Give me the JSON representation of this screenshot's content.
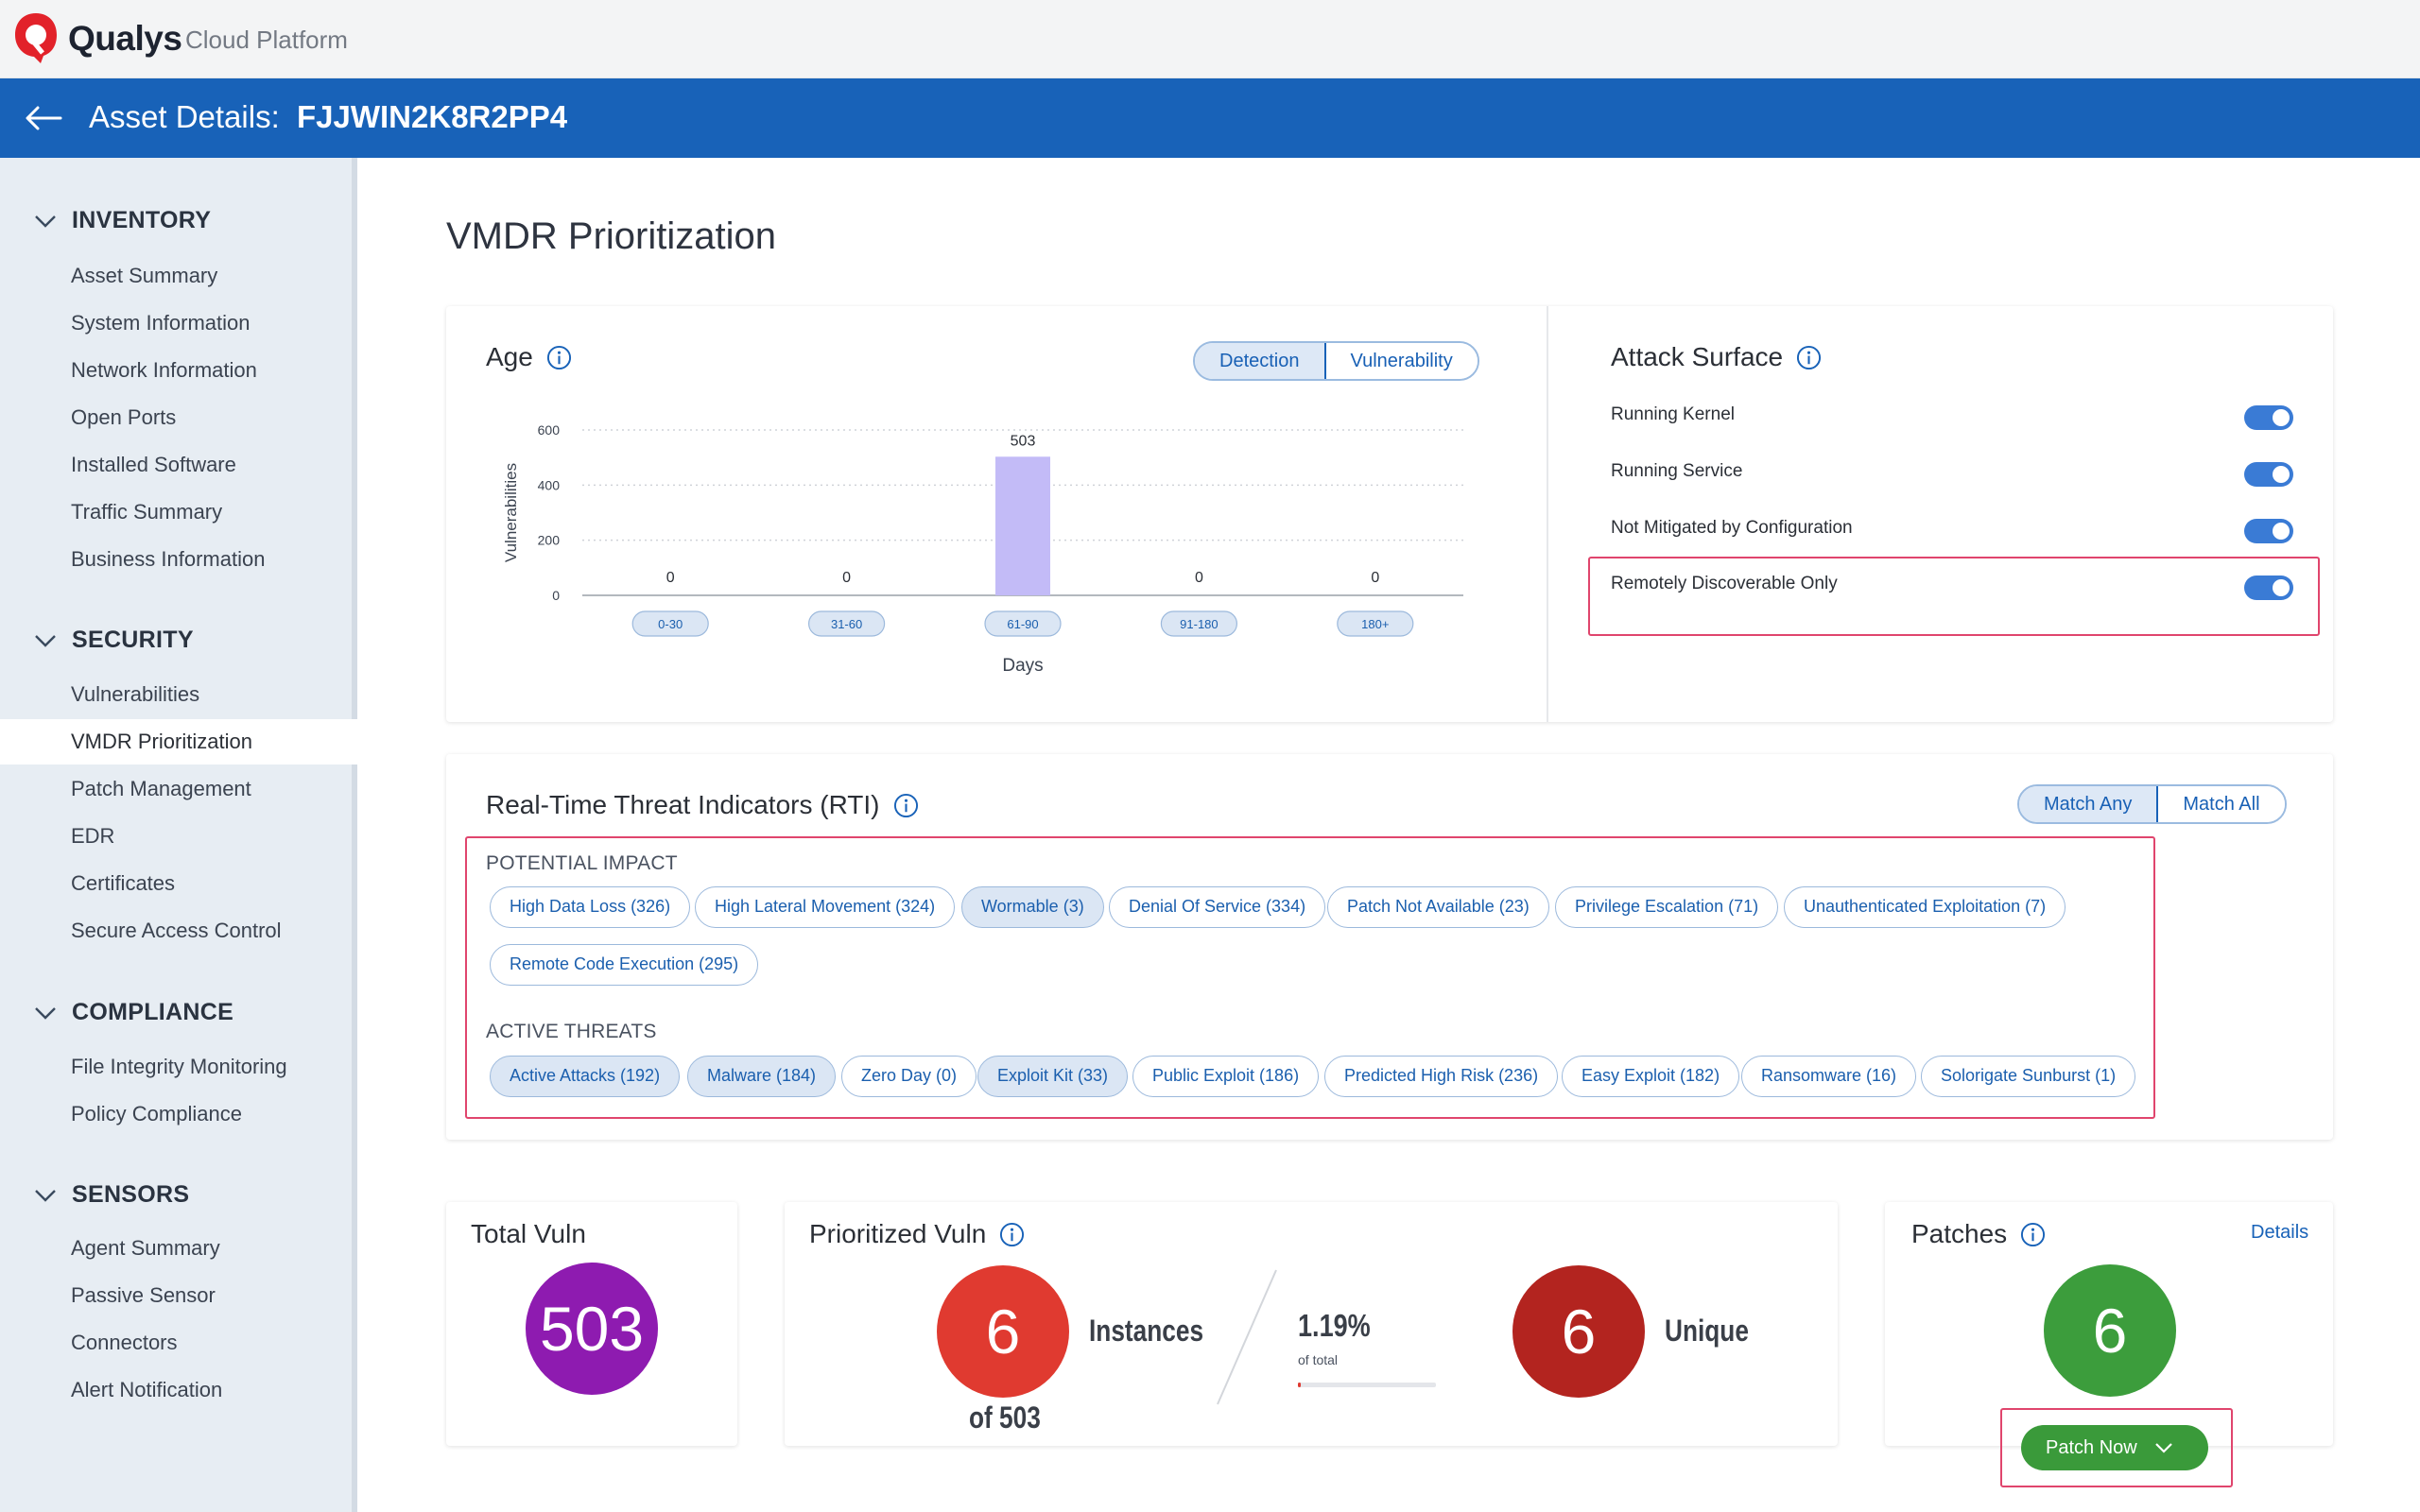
{
  "app": {
    "brand": "Qualys",
    "brand_suffix": "Cloud Platform",
    "header_label": "Asset Details:",
    "asset_name": "FJJWIN2K8R2PP4",
    "brand_color": "#1862b8"
  },
  "sidebar": {
    "sections": [
      {
        "title": "INVENTORY",
        "items": [
          "Asset Summary",
          "System Information",
          "Network Information",
          "Open Ports",
          "Installed Software",
          "Traffic Summary",
          "Business Information"
        ]
      },
      {
        "title": "SECURITY",
        "items": [
          "Vulnerabilities",
          "VMDR Prioritization",
          "Patch Management",
          "EDR",
          "Certificates",
          "Secure Access Control"
        ]
      },
      {
        "title": "COMPLIANCE",
        "items": [
          "File Integrity Monitoring",
          "Policy Compliance"
        ]
      },
      {
        "title": "SENSORS",
        "items": [
          "Agent Summary",
          "Passive Sensor",
          "Connectors",
          "Alert Notification"
        ]
      }
    ],
    "active_item": "VMDR Prioritization"
  },
  "page_title": "VMDR Prioritization",
  "age": {
    "title": "Age",
    "toggle": [
      "Detection",
      "Vulnerability"
    ],
    "selected": "Detection"
  },
  "chart_data": {
    "type": "bar",
    "categories": [
      "0-30",
      "31-60",
      "61-90",
      "91-180",
      "180+"
    ],
    "values": [
      0,
      0,
      503,
      0,
      0
    ],
    "data_labels": [
      "0",
      "0",
      "503",
      "0",
      "0"
    ],
    "xlabel": "Days",
    "ylabel": "Vulnerabilities",
    "ylim": [
      0,
      600
    ],
    "yticks": [
      "0",
      "200",
      "400",
      "600"
    ],
    "grid": true,
    "bar_color": "#c3bbf7"
  },
  "attack_surface": {
    "title": "Attack Surface",
    "toggles": [
      {
        "label": "Running Kernel",
        "on": true
      },
      {
        "label": "Running Service",
        "on": true
      },
      {
        "label": "Not Mitigated by Configuration",
        "on": true
      },
      {
        "label": "Remotely Discoverable Only",
        "on": true
      }
    ]
  },
  "rti": {
    "title": "Real-Time Threat Indicators (RTI)",
    "match": [
      "Match Any",
      "Match All"
    ],
    "selected_match": "Match Any",
    "potential_impact_label": "POTENTIAL IMPACT",
    "potential_impact": [
      {
        "label": "High Data Loss (326)",
        "on": false
      },
      {
        "label": "High Lateral Movement (324)",
        "on": false
      },
      {
        "label": "Wormable (3)",
        "on": true
      },
      {
        "label": "Denial Of Service (334)",
        "on": false
      },
      {
        "label": "Patch Not Available (23)",
        "on": false
      },
      {
        "label": "Privilege Escalation (71)",
        "on": false
      },
      {
        "label": "Unauthenticated Exploitation (7)",
        "on": false
      },
      {
        "label": "Remote Code Execution (295)",
        "on": false
      }
    ],
    "active_threats_label": "ACTIVE THREATS",
    "active_threats": [
      {
        "label": "Active Attacks (192)",
        "on": true
      },
      {
        "label": "Malware (184)",
        "on": true
      },
      {
        "label": "Zero Day (0)",
        "on": false
      },
      {
        "label": "Exploit Kit (33)",
        "on": true
      },
      {
        "label": "Public Exploit (186)",
        "on": false
      },
      {
        "label": "Predicted High Risk (236)",
        "on": false
      },
      {
        "label": "Easy Exploit (182)",
        "on": false
      },
      {
        "label": "Ransomware (16)",
        "on": false
      },
      {
        "label": "Solorigate Sunburst (1)",
        "on": false
      }
    ]
  },
  "total_vuln": {
    "title": "Total Vuln",
    "value": "503",
    "color": "#8e1bb0"
  },
  "prioritized_vuln": {
    "title": "Prioritized Vuln",
    "instances": "6",
    "instances_label": "Instances",
    "of_total": "of 503",
    "percent": "1.19%",
    "percent_sub": "of total",
    "percent_value": 0.0119,
    "unique": "6",
    "unique_label": "Unique",
    "instances_color": "#e03a30",
    "unique_color": "#b3241f"
  },
  "patches": {
    "title": "Patches",
    "details": "Details",
    "value": "6",
    "button": "Patch Now",
    "color": "#3c9d3c"
  }
}
